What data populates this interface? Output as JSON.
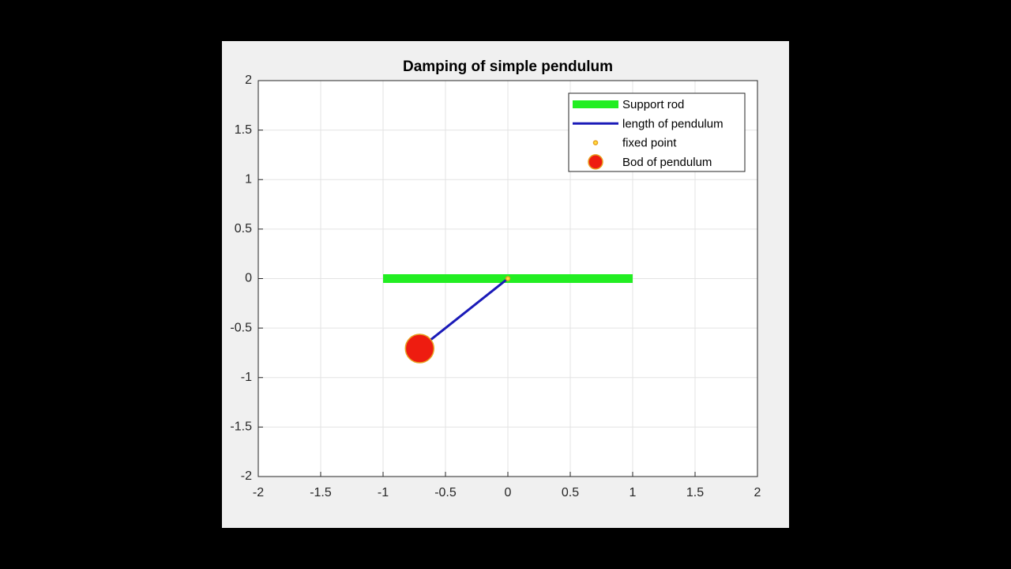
{
  "chart_data": {
    "type": "line",
    "title": "Damping of simple pendulum",
    "xlim": [
      -2,
      2
    ],
    "ylim": [
      -2,
      2
    ],
    "xticks": [
      -2,
      -1.5,
      -1,
      -0.5,
      0,
      0.5,
      1,
      1.5,
      2
    ],
    "yticks": [
      -2,
      -1.5,
      -1,
      -0.5,
      0,
      0.5,
      1,
      1.5,
      2
    ],
    "grid": true,
    "legend": "northeast",
    "series": [
      {
        "name": "Support rod",
        "color": "#22ee22",
        "style": "line",
        "x": [
          -1,
          1
        ],
        "values": [
          0,
          0
        ]
      },
      {
        "name": "length of pendulum",
        "color": "#1a1ab8",
        "style": "line",
        "x": [
          0,
          -0.707
        ],
        "values": [
          0,
          -0.707
        ]
      },
      {
        "name": "fixed point",
        "color": "#e8a020",
        "style": "marker",
        "x": [
          0
        ],
        "values": [
          0
        ]
      },
      {
        "name": "Bod of pendulum",
        "color": "#ee1c10",
        "style": "marker",
        "x": [
          -0.707
        ],
        "values": [
          -0.707
        ]
      }
    ]
  }
}
